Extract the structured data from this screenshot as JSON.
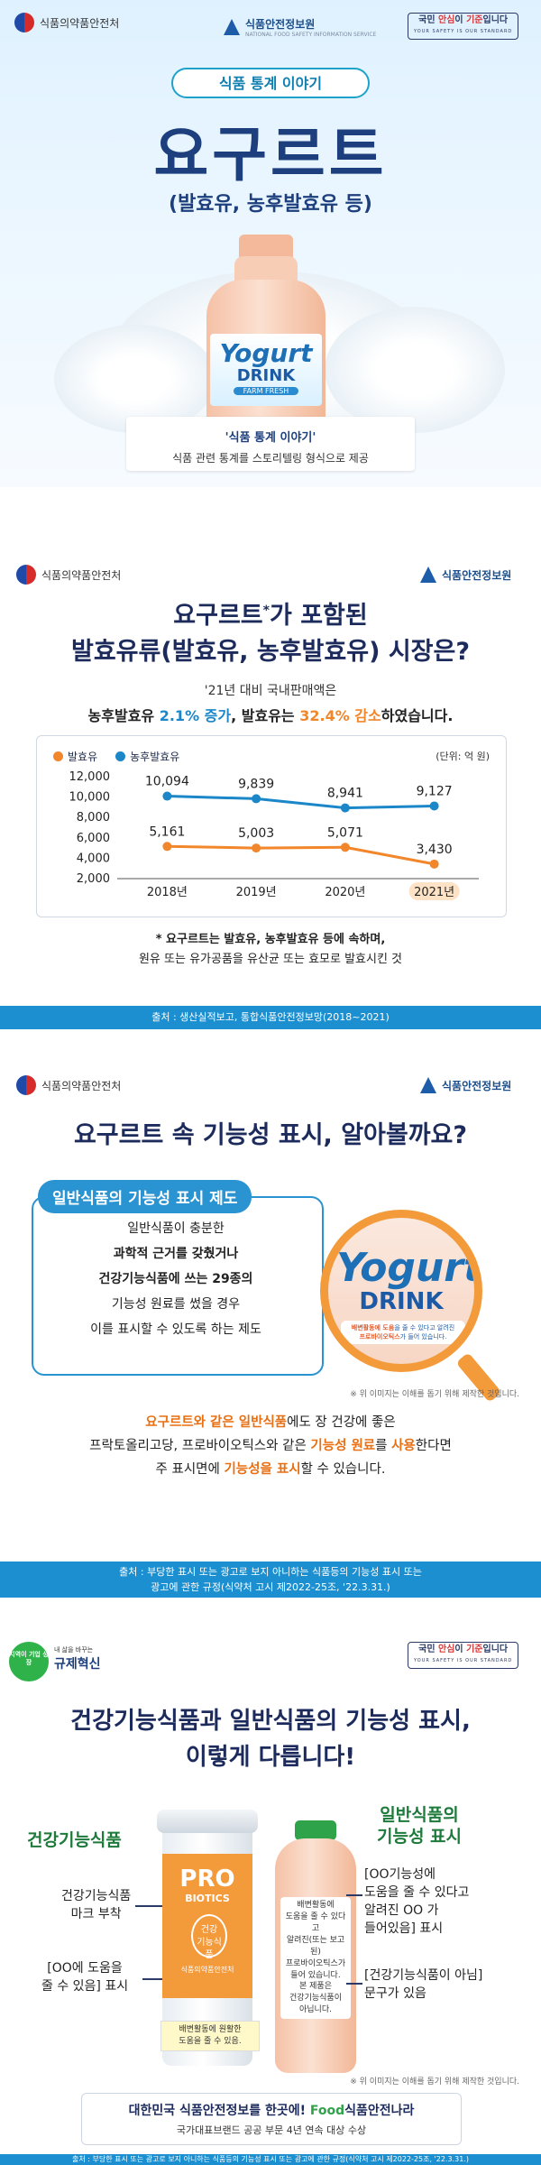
{
  "panel1": {
    "agency": "식품의약품안전처",
    "ksi": "식품안전정보원",
    "ksi_sub": "NATIONAL FOOD SAFETY INFORMATION SERVICE",
    "std_badge_prefix": "국민 ",
    "std_badge_mid": "안심",
    "std_badge_mid2": "이 ",
    "std_badge_end": "기준",
    "std_badge_tail": "입니다",
    "std_badge_sub": "YOUR SAFETY IS OUR STANDARD",
    "pill": "식품 통계 이야기",
    "title": "요구르트",
    "subtitle": "(발효유, 농후발효유 등)",
    "bottle_l1": "Yogurt",
    "bottle_l2": "DRINK",
    "bottle_l3": "FARM FRESH",
    "card_title": "'식품 통계 이야기'",
    "card_text": "식품 관련 통계를 스토리텔링 형식으로 제공"
  },
  "panel2": {
    "agency": "식품의약품안전처",
    "ksi": "식품안전정보원",
    "title_line1_a": "요구르트",
    "title_line1_sup": "*",
    "title_line1_b": "가 포함된",
    "title_line2": "발효유류(발효유, 농후발효유) 시장은?",
    "lead": "'21년 대비 국내판매액은",
    "lead2_a": "농후발효유 ",
    "lead2_b": "2.1% 증가",
    "lead2_c": ", 발효유는 ",
    "lead2_d": "32.4% 감소",
    "lead2_e": "하였습니다.",
    "note1": "* 요구르트는 발효유, 농후발효유 등에 속하며,",
    "note2": "원유 또는 유가공품을 유산균 또는 효모로 발효시킨 것",
    "footer": "출처 : 생산실적보고, 통합식품안전정보망(2018~2021)"
  },
  "chart_data": {
    "type": "line",
    "unit": "(단위: 억 원)",
    "categories": [
      "2018년",
      "2019년",
      "2020년",
      "2021년"
    ],
    "series": [
      {
        "name": "발효유",
        "color": "#f2862a",
        "values": [
          5161,
          5003,
          5071,
          3430
        ],
        "labels": [
          "5,161",
          "5,003",
          "5,071",
          "3,430"
        ]
      },
      {
        "name": "농후발효유",
        "color": "#1b87c9",
        "values": [
          10094,
          9839,
          8941,
          9127
        ],
        "labels": [
          "10,094",
          "9,839",
          "8,941",
          "9,127"
        ]
      }
    ],
    "ylim": [
      2000,
      12000
    ],
    "yticks": [
      "12,000",
      "10,000",
      "8,000",
      "6,000",
      "4,000",
      "2,000"
    ],
    "highlight_category": "2021년"
  },
  "panel3": {
    "agency": "식품의약품안전처",
    "ksi": "식품안전정보원",
    "title": "요구르트 속 기능성 표시, 알아볼까요?",
    "frame_tab": "일반식품의 기능성 표시 제도",
    "frame_lines": [
      "일반식품이 충분한",
      "과학적 근거를 갖췄거나",
      "건강기능식품에 쓰는 29종의",
      "기능성 원료를 썼을 경우",
      "이를 표시할 수 있도록 하는 제도"
    ],
    "mag_l1": "Yogurt",
    "mag_l2": "DRINK",
    "mag_note_a": "배변활동에 도움",
    "mag_note_b": "을 줄 수 있다고 알려진",
    "mag_note_c": "프로바이오틱스",
    "mag_note_d": "가 들어 있습니다.",
    "image_note": "※ 위 이미지는 이해를 돕기 위해 제작한 것입니다.",
    "para1_a": "요구르트와 같은 일반식품",
    "para1_b": "에도 장 건강에 좋은",
    "para2_a": "프락토올리고당, 프로바이오틱스와 같은 ",
    "para2_b": "기능성 원료",
    "para2_c": "를 ",
    "para2_d": "사용",
    "para2_e": "한다면",
    "para3_a": "주 표시면에 ",
    "para3_b": "기능성을 표시",
    "para3_c": "할 수 있습니다.",
    "footer1": "출처 : 부당한 표시 또는 광고로 보지 아니하는 식품등의 기능성 표시 또는",
    "footer2": "광고에 관한 규정(식약처 고시 제2022-25조, '22.3.31.)"
  },
  "panel4": {
    "badge": "지역이 기업 성장",
    "reg_tag": "내 삶을 바꾸는",
    "reg_main": "규제혁신",
    "std_badge_prefix": "국민 ",
    "std_badge_mid": "안심",
    "std_badge_mid2": "이 ",
    "std_badge_end": "기준",
    "std_badge_tail": "입니다",
    "std_badge_sub": "YOUR SAFETY IS OUR STANDARD",
    "title1": "건강기능식품과 일반식품의 기능성 표시,",
    "title2": "이렇게 다릅니다!",
    "left_head": "건강기능식품",
    "left_mark": "건강기능식품\n마크 부착",
    "left_claim": "[OO에 도움을\n줄 수 있음] 표시",
    "cyl_pro": "PRO",
    "cyl_bio": "BIOTICS",
    "cyl_hf": "건강\n기능식품",
    "cyl_lbl": "식품의약품안전처",
    "cyl_note": "배변활동에 원활한\n도움을 줄 수 있음.",
    "bottle_note1": "배변활동에\n도움을 줄 수 있다고\n알려진(또는 보고된)\n프로바이오틱스가\n들어 있습니다.",
    "bottle_note2": "본 제품은\n건강기능식품이\n아닙니다.",
    "right_head1": "일반식품의",
    "right_head2": "기능성 표시",
    "right_claim": "[OO기능성에\n도움을 줄 수 있다고\n알려진 OO 가\n들어있음] 표시",
    "right_not": "[건강기능식품이 아님]\n문구가 있음",
    "image_note": "※ 위 이미지는 이해를 돕기 위해 제작한 것입니다.",
    "award1_a": "대한민국 식품안전정보를 한곳에! ",
    "award1_b": "Food",
    "award1_c": "식품안전나라",
    "award2": "국가대표브랜드 공공 부문 4년 연속 대상 수상",
    "footer1": "출처 : 부당한 표시 또는 광고로 보지 아니하는 식품등의 기능성 표시 또는",
    "footer2": "광고에 관한 규정(식약처 고시 제2022-25조, '22.3.31.)"
  }
}
